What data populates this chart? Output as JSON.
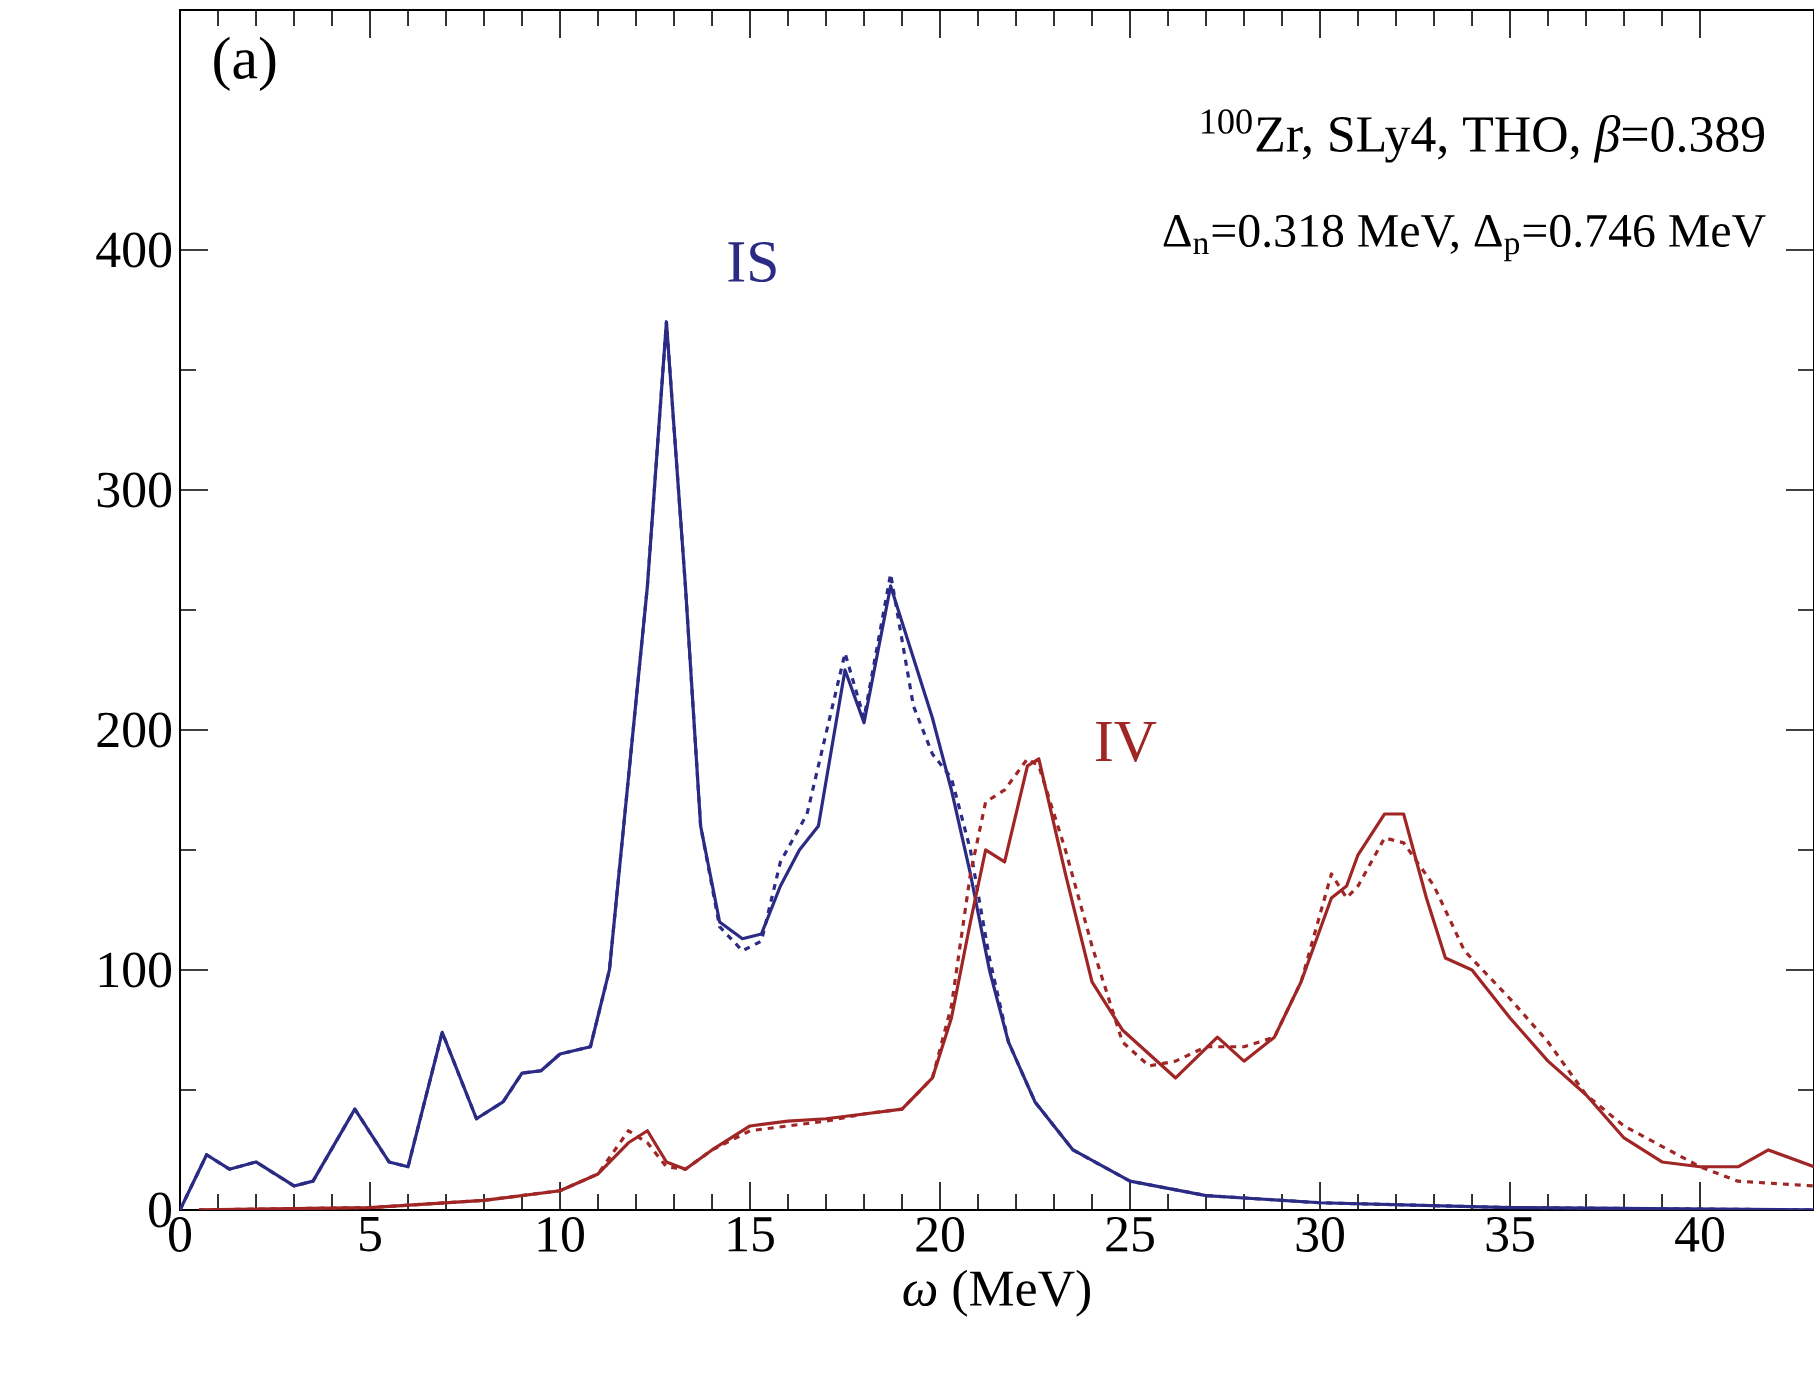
{
  "chart_data": {
    "type": "line",
    "xlabel": "*ω* (MeV)",
    "xlim": [
      0,
      43
    ],
    "ylim": [
      0,
      500
    ],
    "xticks": [
      0,
      5,
      10,
      15,
      20,
      25,
      30,
      35,
      40
    ],
    "yticks": [
      0,
      100,
      200,
      300,
      400
    ],
    "annotations": [
      "(a)",
      "$^{100}$Zr, SLy4, THO, *β*=0.389",
      "Δ$_{n}$=0.318 MeV, Δ$_{p}$=0.746 MeV",
      "IS",
      "IV"
    ],
    "series": [
      {
        "color": "#2b2b85",
        "line_style": "solid",
        "x": [
          0,
          0.7,
          1.3,
          2,
          3,
          3.5,
          4.6,
          5.5,
          6,
          6.9,
          7.8,
          8.5,
          9,
          9.5,
          10,
          10.8,
          11.3,
          11.8,
          12.3,
          12.8,
          13.3,
          13.7,
          14.2,
          14.8,
          15.3,
          15.8,
          16.3,
          16.8,
          17.5,
          18,
          18.7,
          19.3,
          19.8,
          20.3,
          20.8,
          21.3,
          21.8,
          22.5,
          23.5,
          25,
          27,
          30,
          35,
          43
        ],
        "values": [
          0,
          23,
          17,
          20,
          10,
          12,
          42,
          20,
          18,
          74,
          38,
          45,
          57,
          58,
          65,
          68,
          100,
          180,
          260,
          370,
          260,
          160,
          120,
          113,
          115,
          135,
          150,
          160,
          225,
          203,
          260,
          230,
          205,
          175,
          140,
          100,
          70,
          45,
          25,
          12,
          6,
          3,
          1,
          0
        ]
      },
      {
        "color": "#2b2b85",
        "line_style": "dashed",
        "x": [
          0,
          0.7,
          1.3,
          2,
          3,
          3.5,
          4.6,
          5.5,
          6,
          6.9,
          7.8,
          8.5,
          9,
          9.5,
          10,
          10.8,
          11.3,
          11.8,
          12.3,
          12.8,
          13.3,
          13.7,
          14.2,
          14.8,
          15.3,
          15.8,
          16.5,
          17.5,
          18,
          18.7,
          19.3,
          19.8,
          20.3,
          20.8,
          21.3,
          21.8,
          22.5,
          23.5,
          25,
          27,
          30,
          35,
          43
        ],
        "values": [
          0,
          23,
          17,
          20,
          10,
          12,
          42,
          20,
          18,
          74,
          38,
          45,
          57,
          58,
          65,
          68,
          100,
          180,
          260,
          370,
          260,
          160,
          118,
          108,
          112,
          145,
          165,
          232,
          205,
          265,
          210,
          190,
          180,
          150,
          105,
          70,
          45,
          25,
          12,
          6,
          3,
          1,
          0
        ]
      },
      {
        "color": "#a02525",
        "line_style": "solid",
        "x": [
          0.5,
          5,
          8,
          10,
          11,
          11.8,
          12.3,
          12.8,
          13.3,
          14,
          15,
          16,
          17,
          18,
          19,
          19.8,
          20.3,
          20.8,
          21.2,
          21.7,
          22.3,
          22.6,
          23.3,
          24,
          24.8,
          25.5,
          26.2,
          27.3,
          28,
          28.8,
          29.5,
          30.3,
          30.7,
          31,
          31.7,
          32.2,
          32.8,
          33.3,
          34,
          35,
          36,
          37,
          38,
          39,
          40,
          41,
          41.8,
          43
        ],
        "values": [
          0,
          1,
          4,
          8,
          15,
          28,
          33,
          20,
          17,
          25,
          35,
          37,
          38,
          40,
          42,
          55,
          80,
          120,
          150,
          145,
          185,
          188,
          140,
          95,
          75,
          65,
          55,
          72,
          62,
          72,
          95,
          130,
          135,
          148,
          165,
          165,
          130,
          105,
          100,
          80,
          62,
          48,
          30,
          20,
          18,
          18,
          25,
          18
        ]
      },
      {
        "color": "#a02525",
        "line_style": "dashed",
        "x": [
          0.5,
          5,
          8,
          10,
          11,
          11.8,
          12.3,
          12.8,
          13.3,
          14,
          15,
          16,
          17,
          18,
          19,
          19.8,
          20.3,
          20.8,
          21.2,
          21.7,
          22.3,
          22.6,
          23.3,
          24,
          24.8,
          25.5,
          26.2,
          27,
          28,
          28.8,
          29.5,
          30.3,
          30.7,
          31,
          31.7,
          32.2,
          33,
          33.8,
          35,
          36,
          37,
          38,
          40,
          41,
          43
        ],
        "values": [
          0,
          1,
          4,
          8,
          15,
          33,
          28,
          18,
          17,
          25,
          33,
          35,
          37,
          40,
          42,
          55,
          85,
          140,
          170,
          175,
          188,
          185,
          150,
          110,
          70,
          60,
          62,
          68,
          68,
          72,
          95,
          140,
          130,
          135,
          155,
          153,
          135,
          108,
          88,
          70,
          48,
          35,
          18,
          12,
          10
        ]
      }
    ]
  }
}
